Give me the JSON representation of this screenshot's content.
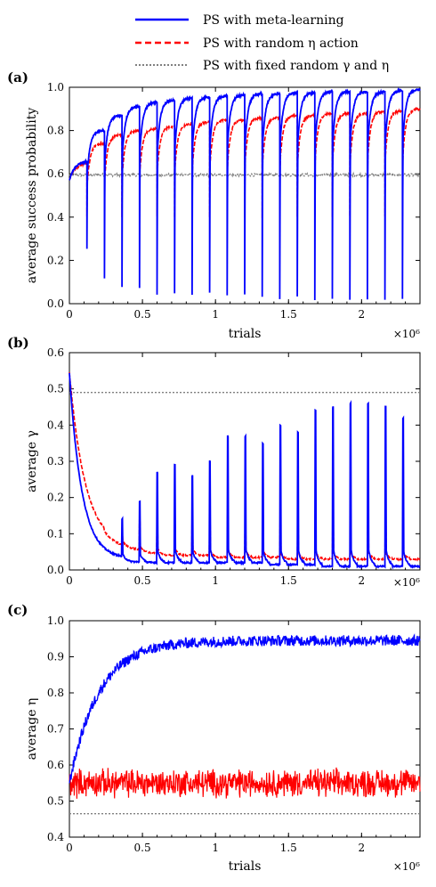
{
  "legend": [
    {
      "label": "PS with meta-learning",
      "color": "#0000ff",
      "dash": "solid"
    },
    {
      "label": "PS with random η action",
      "color": "#ff0000",
      "dash": "dashed"
    },
    {
      "label": "PS with fixed random γ and η",
      "color": "#808080",
      "dash": "dotted"
    }
  ],
  "chart_data": [
    {
      "panel": "(a)",
      "type": "line",
      "xlabel": "trials",
      "ylabel": "average success probability",
      "xlim": [
        0,
        2.4
      ],
      "ylim": [
        0,
        1.0
      ],
      "x_multiplier": "×10⁶",
      "xticks": [
        "0",
        "0.5",
        "1",
        "1.5",
        "2"
      ],
      "yticks": [
        "0.0",
        "0.2",
        "0.4",
        "0.6",
        "0.8",
        "1.0"
      ],
      "reset_period": 0.12,
      "resets": 19,
      "series": [
        {
          "name": "PS with meta-learning",
          "color": "#0000ff",
          "peaks": [
            0.66,
            0.8,
            0.87,
            0.91,
            0.93,
            0.94,
            0.95,
            0.955,
            0.96,
            0.965,
            0.97,
            0.97,
            0.975,
            0.975,
            0.98,
            0.98,
            0.98,
            0.98,
            0.985,
            0.99
          ],
          "dips": [
            0.25,
            0.12,
            0.08,
            0.07,
            0.04,
            0.05,
            0.04,
            0.05,
            0.04,
            0.04,
            0.03,
            0.02,
            0.03,
            0.02,
            0.02,
            0.02,
            0.02,
            0.02,
            0.02
          ]
        },
        {
          "name": "PS with random η action",
          "color": "#ff0000",
          "peaks": [
            0.65,
            0.74,
            0.78,
            0.8,
            0.81,
            0.82,
            0.83,
            0.84,
            0.85,
            0.85,
            0.86,
            0.86,
            0.87,
            0.87,
            0.88,
            0.88,
            0.88,
            0.89,
            0.89,
            0.9
          ],
          "dips": [
            0.4,
            0.4,
            0.4,
            0.4,
            0.4,
            0.4,
            0.4,
            0.4,
            0.4,
            0.4,
            0.4,
            0.4,
            0.4,
            0.4,
            0.4,
            0.4,
            0.4,
            0.4,
            0.4
          ]
        },
        {
          "name": "PS with fixed random γ and η",
          "color": "#808080",
          "level": 0.595
        }
      ]
    },
    {
      "panel": "(b)",
      "type": "line",
      "xlabel": "",
      "ylabel": "average γ",
      "xlim": [
        0,
        2.4
      ],
      "ylim": [
        0,
        0.6
      ],
      "x_multiplier": "×10⁶",
      "xticks": [
        "0",
        "0.5",
        "1",
        "1.5",
        "2"
      ],
      "yticks": [
        "0.0",
        "0.1",
        "0.2",
        "0.3",
        "0.4",
        "0.5",
        "0.6"
      ],
      "series": [
        {
          "name": "PS with meta-learning",
          "color": "#0000ff",
          "start": 0.545,
          "floor": [
            0.03,
            0.03,
            0.03,
            0.02,
            0.02,
            0.02,
            0.02,
            0.02,
            0.02,
            0.02,
            0.02,
            0.015,
            0.015,
            0.015,
            0.01,
            0.01,
            0.01,
            0.01,
            0.01,
            0.01
          ],
          "spikes": [
            0.14,
            0.19,
            0.27,
            0.29,
            0.26,
            0.3,
            0.37,
            0.37,
            0.35,
            0.4,
            0.38,
            0.44,
            0.45,
            0.46,
            0.46,
            0.45,
            0.42
          ]
        },
        {
          "name": "PS with random η action",
          "color": "#ff0000",
          "start": 0.545,
          "floor": [
            0.06,
            0.06,
            0.05,
            0.05,
            0.045,
            0.04,
            0.04,
            0.04,
            0.035,
            0.035,
            0.035,
            0.035,
            0.03,
            0.03,
            0.03,
            0.03,
            0.03,
            0.03,
            0.03,
            0.03
          ],
          "spikes": [
            0.1,
            0.14,
            0.14,
            0.14,
            0.15,
            0.15,
            0.16,
            0.16,
            0.16,
            0.16,
            0.16,
            0.17,
            0.17,
            0.17,
            0.17,
            0.17,
            0.18
          ]
        },
        {
          "name": "PS with fixed random γ and η",
          "color": "#808080",
          "level": 0.49
        }
      ]
    },
    {
      "panel": "(c)",
      "type": "line",
      "xlabel": "trials",
      "ylabel": "average η",
      "xlim": [
        0,
        2.4
      ],
      "ylim": [
        0.4,
        1.0
      ],
      "x_multiplier": "×10⁶",
      "xticks": [
        "0",
        "0.5",
        "1",
        "1.5",
        "2"
      ],
      "yticks": [
        "0.4",
        "0.5",
        "0.6",
        "0.7",
        "0.8",
        "0.9",
        "1.0"
      ],
      "series": [
        {
          "name": "PS with meta-learning",
          "color": "#0000ff",
          "start": 0.55,
          "plateau": 0.945,
          "noise": 0.015
        },
        {
          "name": "PS with random η action",
          "color": "#ff0000",
          "level": 0.55,
          "noise": 0.03
        },
        {
          "name": "PS with fixed random γ and η",
          "color": "#808080",
          "level": 0.465
        }
      ]
    }
  ]
}
